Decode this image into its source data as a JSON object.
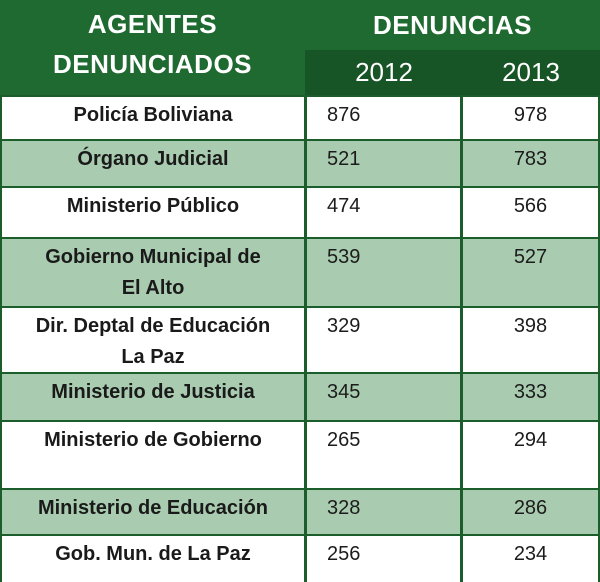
{
  "table": {
    "header": {
      "agents_line1": "AGENTES",
      "agents_line2": "DENUNCIADOS",
      "denuncias": "DENUNCIAS",
      "year1": "2012",
      "year2": "2013"
    },
    "rows": [
      {
        "name1": "Policía Boliviana",
        "name2": "",
        "v2012": "876",
        "v2013": "978"
      },
      {
        "name1": "Órgano Judicial",
        "name2": "",
        "v2012": "521",
        "v2013": "783"
      },
      {
        "name1": "Ministerio Público",
        "name2": "",
        "v2012": "474",
        "v2013": "566"
      },
      {
        "name1": "Gobierno Municipal de",
        "name2": "El Alto",
        "v2012": "539",
        "v2013": "527"
      },
      {
        "name1": "Dir. Deptal de Educación",
        "name2": "La Paz",
        "v2012": "329",
        "v2013": "398"
      },
      {
        "name1": "Ministerio de Justicia",
        "name2": "",
        "v2012": "345",
        "v2013": "333"
      },
      {
        "name1": "Ministerio de Gobierno",
        "name2": "",
        "v2012": "265",
        "v2013": "294"
      },
      {
        "name1": "Ministerio de Educación",
        "name2": "",
        "v2012": "328",
        "v2013": "286"
      },
      {
        "name1": "Gob. Mun. de La Paz",
        "name2": "",
        "v2012": "256",
        "v2013": "234"
      }
    ]
  }
}
